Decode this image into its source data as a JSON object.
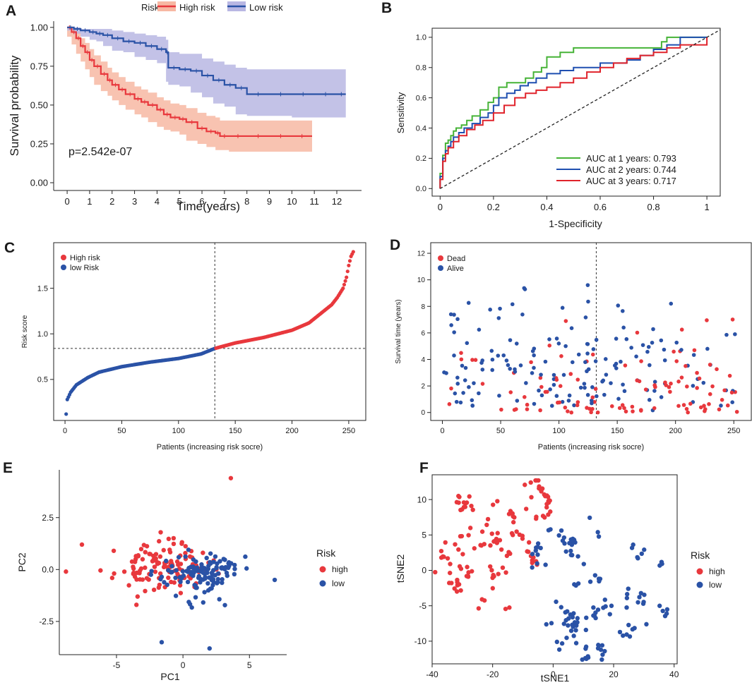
{
  "figure": {
    "panel_labels": [
      "A",
      "B",
      "C",
      "D",
      "E",
      "F"
    ]
  },
  "colors": {
    "high": "#e8383d",
    "low": "#2a52a6",
    "high_band": "#f7b8a3",
    "low_band": "#b9b7e3",
    "auc1": "#46b337",
    "auc2": "#1f4fb0",
    "auc3": "#e0232b"
  },
  "chart_data": [
    {
      "panel": "A",
      "type": "line",
      "title": "",
      "xlabel": "Time(years)",
      "ylabel": "Survival probability",
      "xlim": [
        -0.6,
        13.1
      ],
      "ylim": [
        -0.05,
        1.04
      ],
      "xticks": [
        0,
        1,
        2,
        3,
        4,
        5,
        6,
        7,
        8,
        9,
        10,
        11,
        12
      ],
      "yticks": [
        0.0,
        0.25,
        0.5,
        0.75,
        1.0
      ],
      "ytick_labels": [
        "0.00",
        "0.25",
        "0.50",
        "0.75",
        "1.00"
      ],
      "legend_title": "Risk",
      "legend": [
        "High risk",
        "Low risk"
      ],
      "annotation": "p=2.542e-07",
      "series": [
        {
          "name": "High risk",
          "x": [
            0,
            0.2,
            0.4,
            0.6,
            0.8,
            1.0,
            1.2,
            1.5,
            1.8,
            2.0,
            2.3,
            2.6,
            3.0,
            3.3,
            3.6,
            4.0,
            4.3,
            4.6,
            5.0,
            5.3,
            5.8,
            6.2,
            6.6,
            6.8,
            7.2,
            8.0,
            9.0,
            10.0,
            10.9
          ],
          "y": [
            1.0,
            0.97,
            0.93,
            0.88,
            0.84,
            0.79,
            0.75,
            0.7,
            0.66,
            0.63,
            0.6,
            0.57,
            0.54,
            0.52,
            0.5,
            0.47,
            0.44,
            0.42,
            0.41,
            0.39,
            0.35,
            0.33,
            0.32,
            0.3,
            0.3,
            0.3,
            0.3,
            0.3,
            0.3
          ],
          "lower": [
            1.0,
            0.94,
            0.89,
            0.83,
            0.78,
            0.73,
            0.68,
            0.63,
            0.59,
            0.56,
            0.53,
            0.5,
            0.47,
            0.44,
            0.42,
            0.39,
            0.36,
            0.34,
            0.33,
            0.31,
            0.27,
            0.25,
            0.23,
            0.21,
            0.21,
            0.2,
            0.2,
            0.2,
            0.2
          ],
          "upper": [
            1.0,
            0.99,
            0.97,
            0.93,
            0.9,
            0.86,
            0.82,
            0.78,
            0.74,
            0.71,
            0.68,
            0.65,
            0.62,
            0.6,
            0.58,
            0.55,
            0.53,
            0.51,
            0.5,
            0.48,
            0.45,
            0.43,
            0.42,
            0.4,
            0.4,
            0.4,
            0.4,
            0.4,
            0.4
          ]
        },
        {
          "name": "Low risk",
          "x": [
            0,
            0.3,
            0.6,
            1.0,
            1.3,
            1.6,
            2.0,
            2.5,
            3.0,
            3.5,
            4.0,
            4.4,
            4.5,
            5.0,
            5.5,
            6.0,
            6.5,
            7.0,
            7.5,
            8.0,
            9.0,
            10.0,
            11.0,
            12.0,
            12.4
          ],
          "y": [
            1.0,
            0.99,
            0.98,
            0.97,
            0.96,
            0.95,
            0.93,
            0.91,
            0.9,
            0.88,
            0.86,
            0.84,
            0.74,
            0.73,
            0.72,
            0.69,
            0.66,
            0.63,
            0.61,
            0.57,
            0.57,
            0.57,
            0.57,
            0.57,
            0.57
          ],
          "lower": [
            1.0,
            0.98,
            0.96,
            0.94,
            0.92,
            0.91,
            0.88,
            0.85,
            0.84,
            0.81,
            0.79,
            0.77,
            0.65,
            0.63,
            0.62,
            0.58,
            0.55,
            0.51,
            0.49,
            0.44,
            0.43,
            0.43,
            0.42,
            0.42,
            0.42
          ],
          "upper": [
            1.0,
            1.0,
            0.99,
            0.99,
            0.99,
            0.99,
            0.98,
            0.97,
            0.96,
            0.95,
            0.94,
            0.92,
            0.84,
            0.83,
            0.83,
            0.8,
            0.78,
            0.76,
            0.74,
            0.73,
            0.73,
            0.73,
            0.73,
            0.73,
            0.73
          ]
        }
      ]
    },
    {
      "panel": "B",
      "type": "line",
      "title": "",
      "xlabel": "1-Specificity",
      "ylabel": "Sensitivity",
      "xlim": [
        -0.03,
        1.05
      ],
      "ylim": [
        -0.05,
        1.06
      ],
      "xticks": [
        0.0,
        0.2,
        0.4,
        0.6,
        0.8,
        1.0
      ],
      "yticks": [
        0.0,
        0.2,
        0.4,
        0.6,
        0.8,
        1.0
      ],
      "legend": [
        "AUC at 1 years: 0.793",
        "AUC at 2 years: 0.744",
        "AUC at 3 years: 0.717"
      ],
      "series": [
        {
          "name": "AUC at 1 years: 0.793",
          "x": [
            0,
            0.0,
            0.01,
            0.01,
            0.02,
            0.02,
            0.03,
            0.04,
            0.05,
            0.06,
            0.08,
            0.1,
            0.12,
            0.15,
            0.18,
            0.2,
            0.22,
            0.25,
            0.3,
            0.32,
            0.35,
            0.38,
            0.4,
            0.45,
            0.5,
            0.6,
            0.7,
            0.8,
            0.83,
            0.85,
            1.0
          ],
          "y": [
            0,
            0.1,
            0.15,
            0.22,
            0.27,
            0.3,
            0.32,
            0.35,
            0.38,
            0.4,
            0.42,
            0.45,
            0.48,
            0.52,
            0.57,
            0.6,
            0.67,
            0.7,
            0.7,
            0.73,
            0.77,
            0.8,
            0.87,
            0.9,
            0.93,
            0.93,
            0.93,
            0.93,
            0.97,
            1.0,
            1.0
          ]
        },
        {
          "name": "AUC at 2 years: 0.744",
          "x": [
            0,
            0.0,
            0.01,
            0.01,
            0.02,
            0.03,
            0.04,
            0.05,
            0.07,
            0.09,
            0.12,
            0.15,
            0.18,
            0.2,
            0.22,
            0.25,
            0.28,
            0.3,
            0.33,
            0.36,
            0.4,
            0.45,
            0.5,
            0.6,
            0.7,
            0.75,
            0.8,
            0.85,
            0.9,
            1.0
          ],
          "y": [
            0,
            0.08,
            0.14,
            0.2,
            0.25,
            0.28,
            0.31,
            0.34,
            0.37,
            0.4,
            0.43,
            0.47,
            0.5,
            0.55,
            0.6,
            0.63,
            0.65,
            0.68,
            0.7,
            0.73,
            0.76,
            0.78,
            0.8,
            0.83,
            0.85,
            0.88,
            0.92,
            0.95,
            1.0,
            1.0
          ]
        },
        {
          "name": "AUC at 3 years: 0.717",
          "x": [
            0,
            0.0,
            0.01,
            0.01,
            0.02,
            0.03,
            0.05,
            0.07,
            0.1,
            0.13,
            0.16,
            0.2,
            0.24,
            0.28,
            0.32,
            0.36,
            0.4,
            0.45,
            0.5,
            0.55,
            0.6,
            0.65,
            0.7,
            0.75,
            0.8,
            0.85,
            0.9,
            1.0
          ],
          "y": [
            0,
            0.06,
            0.12,
            0.18,
            0.23,
            0.27,
            0.31,
            0.35,
            0.39,
            0.42,
            0.45,
            0.5,
            0.55,
            0.6,
            0.63,
            0.65,
            0.67,
            0.7,
            0.73,
            0.77,
            0.8,
            0.83,
            0.86,
            0.88,
            0.9,
            0.93,
            0.95,
            1.0
          ]
        },
        {
          "name": "reference",
          "x": [
            0,
            1.05
          ],
          "y": [
            0,
            1.05
          ]
        }
      ]
    },
    {
      "panel": "C",
      "type": "scatter",
      "title": "",
      "xlabel": "Patients (increasing risk socre)",
      "ylabel": "Risk score",
      "xlim": [
        -10,
        265
      ],
      "ylim": [
        0.05,
        2.0
      ],
      "xticks": [
        0,
        50,
        100,
        150,
        200,
        250
      ],
      "yticks": [
        0.5,
        1.0,
        1.5
      ],
      "ytick_labels": [
        "0.5",
        "1.0",
        "1.5"
      ],
      "legend": [
        "High risk",
        "low Risk"
      ],
      "n_patients": 254,
      "cutoff_index": 132,
      "cutoff_value": 0.84,
      "curve": {
        "x": [
          1,
          2,
          5,
          10,
          20,
          30,
          50,
          75,
          100,
          120,
          132,
          150,
          175,
          200,
          215,
          225,
          235,
          240,
          245,
          248,
          250,
          252,
          254
        ],
        "y": [
          0.12,
          0.28,
          0.36,
          0.44,
          0.52,
          0.58,
          0.64,
          0.69,
          0.73,
          0.78,
          0.84,
          0.9,
          0.96,
          1.04,
          1.12,
          1.22,
          1.32,
          1.4,
          1.5,
          1.62,
          1.75,
          1.85,
          1.9
        ]
      }
    },
    {
      "panel": "D",
      "type": "scatter",
      "title": "",
      "xlabel": "Patients (increasing risk socre)",
      "ylabel": "Survival time (years)",
      "xlim": [
        -10,
        265
      ],
      "ylim": [
        -0.6,
        12.8
      ],
      "xticks": [
        0,
        50,
        100,
        150,
        200,
        250
      ],
      "yticks": [
        0,
        2,
        4,
        6,
        8,
        10,
        12
      ],
      "legend": [
        "Dead",
        "Alive"
      ],
      "cutoff_index": 132,
      "n_points": 260,
      "seed": 11
    },
    {
      "panel": "E",
      "type": "scatter",
      "title": "",
      "xlabel": "PC1",
      "ylabel": "PC2",
      "xlim": [
        -9.3,
        7.8
      ],
      "ylim": [
        -4.1,
        4.8
      ],
      "xticks": [
        -5,
        0,
        5
      ],
      "yticks": [
        -2.5,
        0.0,
        2.5
      ],
      "ytick_labels": [
        "-2.5",
        "0.0",
        "2.5"
      ],
      "legend_title": "Risk",
      "legend": [
        "high",
        "low"
      ],
      "clusters": [
        {
          "name": "high",
          "cx": -1.6,
          "cy": 0.1,
          "sx": 1.7,
          "sy": 0.55,
          "n": 125
        },
        {
          "name": "low",
          "cx": 1.4,
          "cy": -0.2,
          "sx": 1.5,
          "sy": 0.55,
          "n": 125
        }
      ],
      "outliers": [
        {
          "name": "high",
          "x": 3.6,
          "y": 4.4
        },
        {
          "name": "high",
          "x": -8.8,
          "y": -0.1
        },
        {
          "name": "high",
          "x": -7.6,
          "y": 1.2
        },
        {
          "name": "high",
          "x": -3.5,
          "y": -1.7
        },
        {
          "name": "low",
          "x": -1.6,
          "y": -3.5
        },
        {
          "name": "low",
          "x": 2.0,
          "y": -3.8
        },
        {
          "name": "low",
          "x": 6.9,
          "y": -0.5
        }
      ],
      "seed": 23
    },
    {
      "panel": "F",
      "type": "scatter",
      "title": "",
      "xlabel": "tSNE1",
      "ylabel": "tSNE2",
      "xlim": [
        -40,
        41
      ],
      "ylim": [
        -13.2,
        13.5
      ],
      "xticks": [
        -40,
        -20,
        0,
        20,
        40
      ],
      "yticks": [
        -10,
        -5,
        0,
        5,
        10
      ],
      "legend_title": "Risk",
      "legend": [
        "high",
        "low"
      ],
      "clusters": [
        {
          "name": "high",
          "cx": -32,
          "cy": 1.0,
          "sx": 3.5,
          "sy": 3.2,
          "n": 45
        },
        {
          "name": "high",
          "cx": -20,
          "cy": 0.5,
          "sx": 4.5,
          "sy": 3.5,
          "n": 45
        },
        {
          "name": "high",
          "cx": -10,
          "cy": 7.5,
          "sx": 4.0,
          "sy": 2.8,
          "n": 40
        },
        {
          "name": "low",
          "cx": 6,
          "cy": 2.5,
          "sx": 6.0,
          "sy": 3.0,
          "n": 40
        },
        {
          "name": "low",
          "cx": 5,
          "cy": -6.5,
          "sx": 6.5,
          "sy": 3.0,
          "n": 45
        },
        {
          "name": "low",
          "cx": 27,
          "cy": -3.0,
          "sx": 7.0,
          "sy": 4.0,
          "n": 45
        }
      ],
      "seed": 37
    }
  ]
}
